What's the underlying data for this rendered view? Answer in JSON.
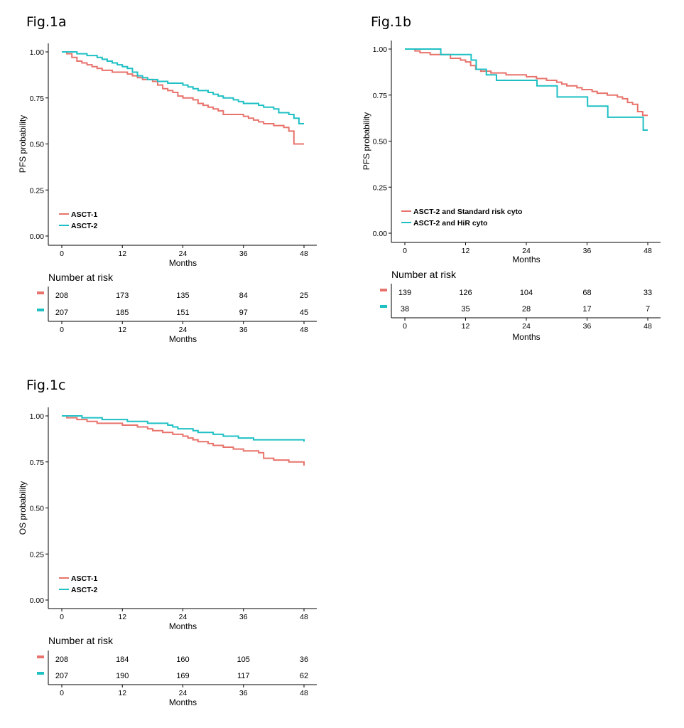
{
  "colors": {
    "series1": "#e8736c",
    "series2": "#1ec0c4",
    "axis": "#000000"
  },
  "figures": [
    {
      "title": "Fig.1a",
      "ylabel": "PFS probability",
      "xlabel": "Months",
      "risk_title": "Number at risk",
      "risk_xlabel": "Months",
      "y_ticks": [
        "0.00",
        "0.25",
        "0.50",
        "0.75",
        "1.00"
      ],
      "x_ticks": [
        "0",
        "12",
        "24",
        "36",
        "48"
      ],
      "legend": [
        "ASCT-1",
        "ASCT-2"
      ],
      "risk": [
        [
          "208",
          "173",
          "135",
          "84",
          "25"
        ],
        [
          "207",
          "185",
          "151",
          "97",
          "45"
        ]
      ]
    },
    {
      "title": "Fig.1b",
      "ylabel": "PFS probability",
      "xlabel": "Months",
      "risk_title": "Number at risk",
      "risk_xlabel": "Months",
      "y_ticks": [
        "0.00",
        "0.25",
        "0.50",
        "0.75",
        "1.00"
      ],
      "x_ticks": [
        "0",
        "12",
        "24",
        "36",
        "48"
      ],
      "legend": [
        "ASCT-2 and Standard risk cyto",
        "ASCT-2 and HiR cyto"
      ],
      "risk": [
        [
          "139",
          "126",
          "104",
          "68",
          "33"
        ],
        [
          "38",
          "35",
          "28",
          "17",
          "7"
        ]
      ]
    },
    {
      "title": "Fig.1c",
      "ylabel": "OS probability",
      "xlabel": "Months",
      "risk_title": "Number at risk",
      "risk_xlabel": "Months",
      "y_ticks": [
        "0.00",
        "0.25",
        "0.50",
        "0.75",
        "1.00"
      ],
      "x_ticks": [
        "0",
        "12",
        "24",
        "36",
        "48"
      ],
      "legend": [
        "ASCT-1",
        "ASCT-2"
      ],
      "risk": [
        [
          "208",
          "184",
          "160",
          "105",
          "36"
        ],
        [
          "207",
          "190",
          "169",
          "117",
          "62"
        ]
      ]
    }
  ],
  "chart_data": [
    {
      "type": "line",
      "title": "Fig.1a",
      "xlabel": "Months",
      "ylabel": "PFS probability",
      "xlim": [
        0,
        48
      ],
      "ylim": [
        0,
        1
      ],
      "series": [
        {
          "name": "ASCT-1",
          "x": [
            0,
            1,
            2,
            3,
            4,
            5,
            6,
            7,
            8,
            9,
            10,
            11,
            12,
            13,
            14,
            15,
            16,
            17,
            18,
            19,
            20,
            21,
            22,
            23,
            24,
            25,
            26,
            27,
            28,
            29,
            30,
            31,
            32,
            33,
            34,
            35,
            36,
            37,
            38,
            39,
            40,
            41,
            42,
            43,
            44,
            45,
            46,
            47,
            48
          ],
          "y": [
            1.0,
            0.99,
            0.97,
            0.95,
            0.94,
            0.93,
            0.92,
            0.91,
            0.9,
            0.9,
            0.89,
            0.89,
            0.89,
            0.88,
            0.87,
            0.86,
            0.85,
            0.85,
            0.84,
            0.82,
            0.8,
            0.79,
            0.78,
            0.76,
            0.75,
            0.75,
            0.74,
            0.72,
            0.71,
            0.7,
            0.69,
            0.68,
            0.66,
            0.66,
            0.66,
            0.66,
            0.65,
            0.64,
            0.63,
            0.62,
            0.61,
            0.61,
            0.6,
            0.6,
            0.59,
            0.57,
            0.5,
            0.5,
            0.5
          ]
        },
        {
          "name": "ASCT-2",
          "x": [
            0,
            1,
            2,
            3,
            4,
            5,
            6,
            7,
            8,
            9,
            10,
            11,
            12,
            13,
            14,
            15,
            16,
            17,
            18,
            19,
            20,
            21,
            22,
            23,
            24,
            25,
            26,
            27,
            28,
            29,
            30,
            31,
            32,
            33,
            34,
            35,
            36,
            37,
            38,
            39,
            40,
            41,
            42,
            43,
            44,
            45,
            46,
            47,
            48
          ],
          "y": [
            1.0,
            1.0,
            1.0,
            0.99,
            0.99,
            0.98,
            0.98,
            0.97,
            0.96,
            0.95,
            0.94,
            0.93,
            0.92,
            0.91,
            0.89,
            0.87,
            0.86,
            0.85,
            0.85,
            0.84,
            0.84,
            0.83,
            0.83,
            0.83,
            0.82,
            0.81,
            0.8,
            0.79,
            0.79,
            0.78,
            0.77,
            0.76,
            0.75,
            0.75,
            0.74,
            0.73,
            0.72,
            0.72,
            0.72,
            0.71,
            0.7,
            0.7,
            0.69,
            0.67,
            0.67,
            0.66,
            0.64,
            0.61,
            0.61
          ]
        }
      ],
      "grid": false,
      "legend_position": "bottom-left"
    },
    {
      "type": "line",
      "title": "Fig.1b",
      "xlabel": "Months",
      "ylabel": "PFS probability",
      "xlim": [
        0,
        48
      ],
      "ylim": [
        0,
        1
      ],
      "series": [
        {
          "name": "ASCT-2 and Standard risk cyto",
          "x": [
            0,
            2,
            3,
            5,
            7,
            9,
            11,
            12,
            13,
            14,
            15,
            17,
            20,
            22,
            24,
            26,
            28,
            30,
            31,
            32,
            34,
            35,
            36,
            37,
            38,
            39,
            40,
            41,
            42,
            43,
            44,
            45,
            46,
            47,
            48
          ],
          "y": [
            1.0,
            0.99,
            0.98,
            0.97,
            0.97,
            0.95,
            0.94,
            0.93,
            0.91,
            0.89,
            0.88,
            0.87,
            0.86,
            0.86,
            0.85,
            0.84,
            0.83,
            0.82,
            0.81,
            0.8,
            0.79,
            0.78,
            0.78,
            0.77,
            0.76,
            0.76,
            0.75,
            0.75,
            0.74,
            0.73,
            0.71,
            0.7,
            0.66,
            0.64,
            0.64
          ]
        },
        {
          "name": "ASCT-2 and HiR cyto",
          "x": [
            0,
            7,
            7.1,
            13,
            13.1,
            14,
            14.1,
            16,
            16.1,
            18,
            18.1,
            26,
            26.1,
            30,
            30.1,
            36,
            36.1,
            40,
            40.1,
            47,
            47.1,
            48
          ],
          "y": [
            1.0,
            1.0,
            0.97,
            0.97,
            0.94,
            0.94,
            0.89,
            0.89,
            0.86,
            0.86,
            0.83,
            0.83,
            0.8,
            0.8,
            0.74,
            0.74,
            0.69,
            0.69,
            0.63,
            0.63,
            0.56,
            0.56
          ]
        }
      ],
      "grid": false,
      "legend_position": "bottom-left"
    },
    {
      "type": "line",
      "title": "Fig.1c",
      "xlabel": "Months",
      "ylabel": "OS probability",
      "xlim": [
        0,
        48
      ],
      "ylim": [
        0,
        1
      ],
      "series": [
        {
          "name": "ASCT-1",
          "x": [
            0,
            1,
            2,
            3,
            4,
            5,
            6,
            7,
            8,
            9,
            10,
            11,
            12,
            13,
            14,
            15,
            16,
            17,
            18,
            19,
            20,
            21,
            22,
            23,
            24,
            25,
            26,
            27,
            28,
            29,
            30,
            31,
            32,
            33,
            34,
            35,
            36,
            37,
            38,
            39,
            40,
            41,
            42,
            43,
            44,
            45,
            46,
            47,
            48
          ],
          "y": [
            1.0,
            0.99,
            0.99,
            0.98,
            0.98,
            0.97,
            0.97,
            0.96,
            0.96,
            0.96,
            0.96,
            0.96,
            0.95,
            0.95,
            0.95,
            0.94,
            0.94,
            0.93,
            0.92,
            0.92,
            0.91,
            0.91,
            0.9,
            0.9,
            0.89,
            0.88,
            0.87,
            0.86,
            0.86,
            0.85,
            0.84,
            0.84,
            0.83,
            0.83,
            0.82,
            0.82,
            0.81,
            0.81,
            0.81,
            0.8,
            0.77,
            0.77,
            0.76,
            0.76,
            0.76,
            0.75,
            0.75,
            0.75,
            0.73
          ]
        },
        {
          "name": "ASCT-2",
          "x": [
            0,
            1,
            2,
            3,
            4,
            5,
            6,
            7,
            8,
            9,
            10,
            11,
            12,
            13,
            14,
            15,
            16,
            17,
            18,
            19,
            20,
            21,
            22,
            23,
            24,
            25,
            26,
            27,
            28,
            29,
            30,
            31,
            32,
            33,
            34,
            35,
            36,
            37,
            38,
            39,
            40,
            41,
            42,
            43,
            44,
            45,
            46,
            47,
            48
          ],
          "y": [
            1.0,
            1.0,
            1.0,
            1.0,
            0.99,
            0.99,
            0.99,
            0.99,
            0.98,
            0.98,
            0.98,
            0.98,
            0.98,
            0.97,
            0.97,
            0.97,
            0.97,
            0.96,
            0.96,
            0.96,
            0.96,
            0.95,
            0.94,
            0.93,
            0.93,
            0.93,
            0.92,
            0.91,
            0.91,
            0.91,
            0.9,
            0.9,
            0.89,
            0.89,
            0.89,
            0.88,
            0.88,
            0.88,
            0.87,
            0.87,
            0.87,
            0.87,
            0.87,
            0.87,
            0.87,
            0.87,
            0.87,
            0.87,
            0.86
          ]
        }
      ],
      "grid": false,
      "legend_position": "bottom-left"
    }
  ]
}
